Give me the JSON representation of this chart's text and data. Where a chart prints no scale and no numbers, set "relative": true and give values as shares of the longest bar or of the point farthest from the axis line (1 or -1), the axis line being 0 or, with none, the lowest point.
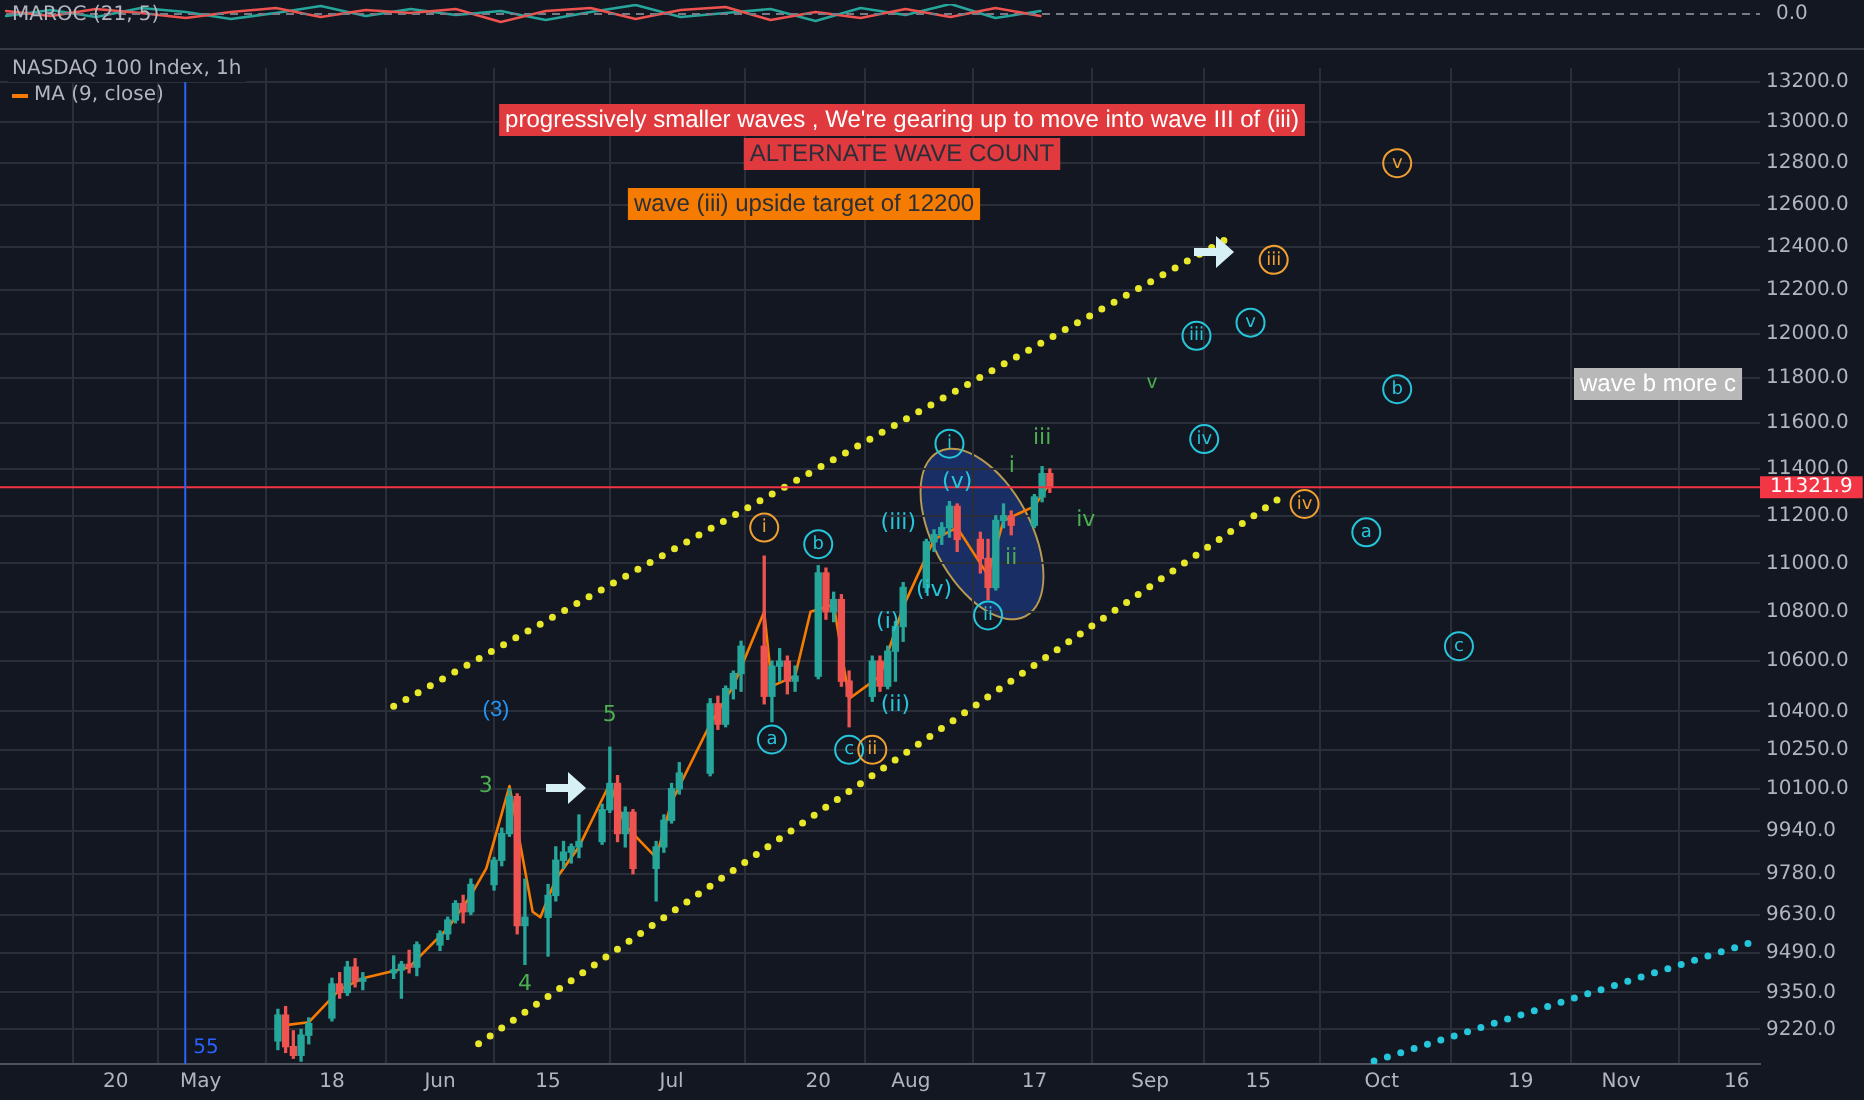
{
  "chart_data": [
    {
      "type": "line",
      "title": "MAROC (21, 5)",
      "relative": true,
      "marker": "none",
      "categories": [
        null,
        null,
        null,
        null,
        null,
        null,
        null,
        null,
        null,
        null,
        null,
        null,
        null,
        null,
        null,
        null,
        null,
        null,
        null,
        null,
        null,
        null,
        null,
        null,
        null,
        null,
        null,
        null,
        null,
        null,
        null,
        null,
        null,
        null,
        null,
        null,
        null,
        null,
        null,
        null
      ],
      "series": [
        {
          "color": "#ef5350",
          "values": [
            0.3,
            -0.2,
            0.5,
            0.1,
            -0.4,
            0.2,
            0.6,
            -0.3,
            0.4,
            0.1,
            0.5,
            -0.8,
            0.3,
            0.6,
            -0.5,
            0.4,
            0.7,
            -0.6,
            0.2,
            -0.4,
            0.5,
            -0.3,
            0.6,
            -0.2,
            null,
            null,
            null,
            null,
            null,
            null,
            null,
            null,
            null,
            null,
            null,
            null,
            null,
            null,
            null,
            null
          ]
        },
        {
          "color": "#26a69a",
          "values": [
            -0.2,
            0.4,
            -0.3,
            0.6,
            0.2,
            -0.5,
            0.1,
            0.8,
            -0.2,
            0.5,
            -0.1,
            0.3,
            -0.6,
            0.2,
            0.9,
            -0.3,
            0.1,
            0.5,
            -0.7,
            0.6,
            -0.1,
            1,
            -0.4,
            0.3,
            null,
            null,
            null,
            null,
            null,
            null,
            null,
            null,
            null,
            null,
            null,
            null,
            null,
            null,
            null,
            null
          ]
        }
      ],
      "ref_lines": [
        {
          "axis": "y",
          "value": 0,
          "label": "0.0",
          "color": "#787b86",
          "line_style": "dashed"
        }
      ]
    },
    {
      "type": "candlestick",
      "title": "NASDAQ 100 Index, 1h",
      "log": true,
      "grid": true,
      "legend": "top left",
      "marker": "none",
      "x": [
        "--05-11",
        "--05-12",
        "--05-13",
        "--05-14",
        "--05-15",
        "--05-18",
        "--05-19",
        "--05-20",
        "--05-21",
        "--05-22",
        "--05-26",
        "--05-27",
        "--05-28",
        "--05-29",
        "--06-01",
        "--06-02",
        "--06-03",
        "--06-04",
        "--06-05",
        "--06-08",
        "--06-09",
        "--06-10",
        "--06-11",
        "--06-12",
        "--06-15",
        "--06-16",
        "--06-17",
        "--06-18",
        "--06-19",
        "--06-22",
        "--06-23",
        "--06-24",
        "--06-25",
        "--06-26",
        "--06-29",
        "--06-30",
        "--07-01",
        "--07-02",
        "--07-06",
        "--07-07",
        "--07-08",
        "--07-09",
        "--07-10",
        "--07-13",
        "--07-14",
        "--07-15",
        "--07-16",
        "--07-17",
        "--07-20",
        "--07-21",
        "--07-22",
        "--07-23",
        "--07-24",
        "--07-27",
        "--07-28",
        "--07-29",
        "--07-30",
        "--07-31",
        "--08-03",
        "--08-04",
        "--08-05",
        "--08-06",
        "--08-07",
        "--08-10",
        "--08-11",
        "--08-12",
        "--08-13",
        "--08-14",
        "--08-17",
        "--08-18",
        "--08-19"
      ],
      "ohlc": [
        [
          9180,
          9290,
          9150,
          9270
        ],
        [
          9270,
          9300,
          9140,
          9160
        ],
        [
          9160,
          9215,
          9120,
          9130
        ],
        [
          9130,
          9220,
          9110,
          9200
        ],
        [
          9200,
          9260,
          9170,
          9240
        ],
        [
          9260,
          9400,
          9250,
          9380
        ],
        [
          9380,
          9420,
          9330,
          9350
        ],
        [
          9350,
          9460,
          9340,
          9440
        ],
        [
          9440,
          9470,
          9370,
          9390
        ],
        [
          9390,
          9420,
          9360,
          9400
        ],
        [
          9420,
          9480,
          9400,
          9430
        ],
        [
          9430,
          9460,
          9330,
          9450
        ],
        [
          9450,
          9500,
          9420,
          9440
        ],
        [
          9440,
          9530,
          9410,
          9520
        ],
        [
          9520,
          9570,
          9500,
          9560
        ],
        [
          9560,
          9620,
          9540,
          9610
        ],
        [
          9610,
          9680,
          9600,
          9670
        ],
        [
          9670,
          9700,
          9600,
          9640
        ],
        [
          9640,
          9760,
          9630,
          9740
        ],
        [
          9740,
          9840,
          9720,
          9830
        ],
        [
          9830,
          9950,
          9810,
          9930
        ],
        [
          9930,
          10100,
          9920,
          10070
        ],
        [
          10070,
          10080,
          9560,
          9590
        ],
        [
          9590,
          9760,
          9450,
          9620
        ],
        [
          9620,
          9740,
          9480,
          9700
        ],
        [
          9700,
          9880,
          9680,
          9830
        ],
        [
          9830,
          9900,
          9800,
          9860
        ],
        [
          9860,
          9890,
          9820,
          9880
        ],
        [
          9880,
          10000,
          9840,
          9900
        ],
        [
          9900,
          10040,
          9890,
          10020
        ],
        [
          10020,
          10260,
          10010,
          10120
        ],
        [
          10120,
          10150,
          9900,
          9930
        ],
        [
          9930,
          10030,
          9880,
          10010
        ],
        [
          10010,
          10020,
          9780,
          9800
        ],
        [
          9800,
          9900,
          9680,
          9880
        ],
        [
          9880,
          10000,
          9860,
          9980
        ],
        [
          9980,
          10120,
          9970,
          10100
        ],
        [
          10100,
          10200,
          10080,
          10160
        ],
        [
          10160,
          10450,
          10150,
          10430
        ],
        [
          10430,
          10460,
          10330,
          10350
        ],
        [
          10350,
          10500,
          10340,
          10490
        ],
        [
          10490,
          10560,
          10450,
          10550
        ],
        [
          10550,
          10680,
          10480,
          10660
        ],
        [
          10660,
          11030,
          10430,
          10460
        ],
        [
          10460,
          10600,
          10360,
          10580
        ],
        [
          10580,
          10650,
          10520,
          10600
        ],
        [
          10600,
          10620,
          10470,
          10520
        ],
        [
          10520,
          10580,
          10480,
          10540
        ],
        [
          10540,
          10990,
          10530,
          10960
        ],
        [
          10960,
          10980,
          10770,
          10800
        ],
        [
          10800,
          10880,
          10760,
          10850
        ],
        [
          10850,
          10870,
          10500,
          10520
        ],
        [
          10520,
          10560,
          10340,
          10460
        ],
        [
          10460,
          10620,
          10440,
          10600
        ],
        [
          10600,
          10620,
          10480,
          10500
        ],
        [
          10500,
          10660,
          10490,
          10640
        ],
        [
          10640,
          10760,
          10520,
          10740
        ],
        [
          10740,
          10920,
          10680,
          10900
        ],
        [
          10900,
          11100,
          10880,
          11090
        ],
        [
          11090,
          11140,
          11050,
          11120
        ],
        [
          11120,
          11170,
          11080,
          11150
        ],
        [
          11150,
          11260,
          11110,
          11240
        ],
        [
          11240,
          11250,
          11050,
          11100
        ],
        [
          11100,
          11130,
          10960,
          11020
        ],
        [
          11020,
          11100,
          10850,
          10900
        ],
        [
          10900,
          11200,
          10890,
          11180
        ],
        [
          11180,
          11250,
          11150,
          11200
        ],
        [
          11200,
          11220,
          11120,
          11160
        ],
        [
          11160,
          11290,
          11150,
          11280
        ],
        [
          11280,
          11410,
          11260,
          11380
        ],
        [
          11380,
          11400,
          11300,
          11321.9
        ]
      ],
      "series": [
        {
          "name": "MA (9, close)",
          "type": "line",
          "color": "#f57c00",
          "line_style": "solid",
          "x": [
            "--05-12",
            "--05-15",
            "--05-19",
            "--05-22",
            "--05-28",
            "--06-02",
            "--06-05",
            "--06-07",
            "--06-10",
            "--06-13",
            "--06-14",
            "--06-16",
            "--06-19",
            "--06-23",
            "--06-25",
            "--06-29",
            "--07-01",
            "--07-06",
            "--07-09",
            "--07-13",
            "--07-14",
            "--07-17",
            "--07-19",
            "--07-22",
            "--07-24",
            "--07-28",
            "--07-31",
            "--08-04",
            "--08-07",
            "--08-11",
            "--08-13",
            "--08-17",
            "--08-19"
          ],
          "values": [
            9235,
            9245,
            9360,
            9400,
            9440,
            9580,
            9700,
            9800,
            10110,
            9640,
            9620,
            9760,
            9880,
            10120,
            9960,
            9840,
            10050,
            10350,
            10500,
            10800,
            10500,
            10540,
            10800,
            10830,
            10450,
            10540,
            10820,
            11100,
            11150,
            10950,
            11180,
            11240,
            11340
          ]
        },
        {
          "type": "line",
          "color": "#e8e82a",
          "line_style": "dotted",
          "x": [
            "--05-26",
            "--09-12"
          ],
          "values": [
            10420,
            12460
          ]
        },
        {
          "type": "line",
          "color": "#e8e82a",
          "line_style": "dotted",
          "x": [
            "--06-06",
            "--09-18"
          ],
          "values": [
            9170,
            11280
          ]
        },
        {
          "type": "line",
          "color": "#26c6da",
          "line_style": "dotted",
          "x": [
            "--09-30",
            "--11-18"
          ],
          "values": [
            9110,
            9530
          ]
        }
      ],
      "xlim": [
        "--04-05",
        "--11-19"
      ],
      "xticks": [
        {
          "value": "--04-20",
          "label": "20"
        },
        {
          "value": "--05-01",
          "label": "May"
        },
        {
          "value": "--05-18",
          "label": "18"
        },
        {
          "value": "--06-01",
          "label": "Jun"
        },
        {
          "value": "--06-15",
          "label": "15"
        },
        {
          "value": "--07-01",
          "label": "Jul"
        },
        {
          "value": "--07-20",
          "label": "20"
        },
        {
          "value": "--08-01",
          "label": "Aug"
        },
        {
          "value": "--08-17",
          "label": "17"
        },
        {
          "value": "--09-01",
          "label": "Sep"
        },
        {
          "value": "--09-15",
          "label": "15"
        },
        {
          "value": "--10-01",
          "label": "Oct"
        },
        {
          "value": "--10-19",
          "label": "19"
        },
        {
          "value": "--11-01",
          "label": "Nov"
        },
        {
          "value": "--11-16",
          "label": "16"
        }
      ],
      "ylim": [
        9100,
        13270
      ],
      "yticks": [
        {
          "value": 9220,
          "label": "9220.0"
        },
        {
          "value": 9350,
          "label": "9350.0"
        },
        {
          "value": 9490,
          "label": "9490.0"
        },
        {
          "value": 9630,
          "label": "9630.0"
        },
        {
          "value": 9780,
          "label": "9780.0"
        },
        {
          "value": 9940,
          "label": "9940.0"
        },
        {
          "value": 10100,
          "label": "10100.0"
        },
        {
          "value": 10250,
          "label": "10250.0"
        },
        {
          "value": 10400,
          "label": "10400.0"
        },
        {
          "value": 10600,
          "label": "10600.0"
        },
        {
          "value": 10800,
          "label": "10800.0"
        },
        {
          "value": 11000,
          "label": "11000.0"
        },
        {
          "value": 11200,
          "label": "11200.0"
        },
        {
          "value": 11400,
          "label": "11400.0"
        },
        {
          "value": 11600,
          "label": "11600.0"
        },
        {
          "value": 11800,
          "label": "11800.0"
        },
        {
          "value": 12000,
          "label": "12000.0"
        },
        {
          "value": 12200,
          "label": "12200.0"
        },
        {
          "value": 12400,
          "label": "12400.0"
        },
        {
          "value": 12600,
          "label": "12600.0"
        },
        {
          "value": 12800,
          "label": "12800.0"
        },
        {
          "value": 13000,
          "label": "13000.0"
        },
        {
          "value": 13200,
          "label": "13200.0"
        }
      ],
      "ref_lines": [
        {
          "axis": "y",
          "value": 11321.9,
          "label": "11321.9",
          "color": "#f23645"
        },
        {
          "axis": "x",
          "value": "--04-29",
          "label": "55",
          "color": "#2962ff"
        }
      ],
      "annotations": [
        "progressively smaller waves , We're gearing up to move into wave III of (iii)",
        "ALTERNATE WAVE COUNT",
        "wave (iii) upside target of 12200",
        "wave b more c",
        "(3)",
        "v",
        {
          "text": "3",
          "x": "--06-09",
          "y": 10080
        },
        {
          "text": "4",
          "x": "--06-12",
          "y": 9450
        },
        {
          "text": "5",
          "x": "--06-23",
          "y": 10260
        },
        {
          "text": "i",
          "x": "--07-13",
          "y": 11150
        },
        {
          "text": "a",
          "x": "--07-14",
          "y": 10290
        },
        {
          "text": "b",
          "x": "--07-20",
          "y": 11080
        },
        {
          "text": "c",
          "x": "--07-24",
          "y": 10250
        },
        {
          "text": "ii",
          "x": "--07-27",
          "y": 10250
        },
        {
          "text": "(i)",
          "x": "--07-29",
          "y": 10660
        },
        {
          "text": "(ii)",
          "x": "--07-30",
          "y": 10520
        },
        {
          "text": "(iii)",
          "x": "--08-03",
          "y": 11100
        },
        {
          "text": "(iv)",
          "x": "--08-04",
          "y": 10890
        },
        {
          "text": "(v)",
          "x": "--08-07",
          "y": 11345
        },
        {
          "text": "i",
          "x": "--08-06",
          "y": 11510
        },
        {
          "text": "ii",
          "x": "--08-11",
          "y": 10785
        },
        {
          "text": "i",
          "x": "--08-12",
          "y": 11345
        },
        {
          "text": "ii",
          "x": "--08-14",
          "y": 11120
        },
        {
          "text": "iii",
          "x": "--08-18",
          "y": 11410
        },
        {
          "text": "iv",
          "x": "--08-19",
          "y": 11300
        },
        {
          "text": "iii",
          "x": "--09-07",
          "y": 11990
        },
        {
          "text": "iv",
          "x": "--09-08",
          "y": 11530
        },
        {
          "text": "v",
          "x": "--09-14",
          "y": 12050
        },
        {
          "text": "iii",
          "x": "--09-17",
          "y": 12340
        },
        {
          "text": "iv",
          "x": "--09-21",
          "y": 11250
        },
        {
          "text": "v",
          "x": "--10-03",
          "y": 12800
        },
        {
          "text": "a",
          "x": "--09-29",
          "y": 11130
        },
        {
          "text": "b",
          "x": "--10-03",
          "y": 11750
        },
        {
          "text": "c",
          "x": "--10-11",
          "y": 10660
        }
      ]
    }
  ]
}
